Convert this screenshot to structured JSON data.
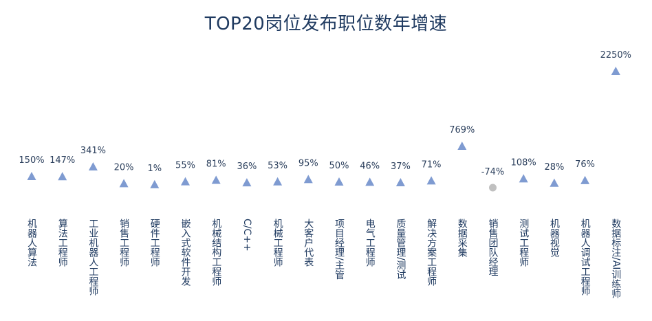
{
  "chart_data": {
    "type": "scatter",
    "title": "TOP20岗位发布职位数年增速",
    "xlabel": "",
    "ylabel": "",
    "legend": "none",
    "grid": false,
    "colors": {
      "positive": "#7f9bd1",
      "negative": "#c0c0c0",
      "text": "#1f3a60"
    },
    "categories": [
      "机器人算法",
      "算法工程师",
      "工业机器人工程师",
      "销售工程师",
      "硬件工程师",
      "嵌入式软件开发",
      "机械结构工程师",
      "C/C++",
      "机械工程师",
      "大客户代表",
      "项目经理/主管",
      "电气工程师",
      "质量管理/测试",
      "解决方案工程师",
      "数据采集",
      "销售团队经理",
      "测试工程师",
      "机器视觉",
      "机器人调试工程师",
      "数据标注/AI训练师"
    ],
    "values": [
      150,
      147,
      341,
      20,
      1,
      55,
      81,
      36,
      53,
      95,
      50,
      46,
      37,
      71,
      769,
      -74,
      108,
      28,
      76,
      2250
    ],
    "labels": [
      "150%",
      "147%",
      "341%",
      "20%",
      "1%",
      "55%",
      "81%",
      "36%",
      "53%",
      "95%",
      "50%",
      "46%",
      "37%",
      "71%",
      "769%",
      "-74%",
      "108%",
      "28%",
      "76%",
      "2250%"
    ]
  }
}
